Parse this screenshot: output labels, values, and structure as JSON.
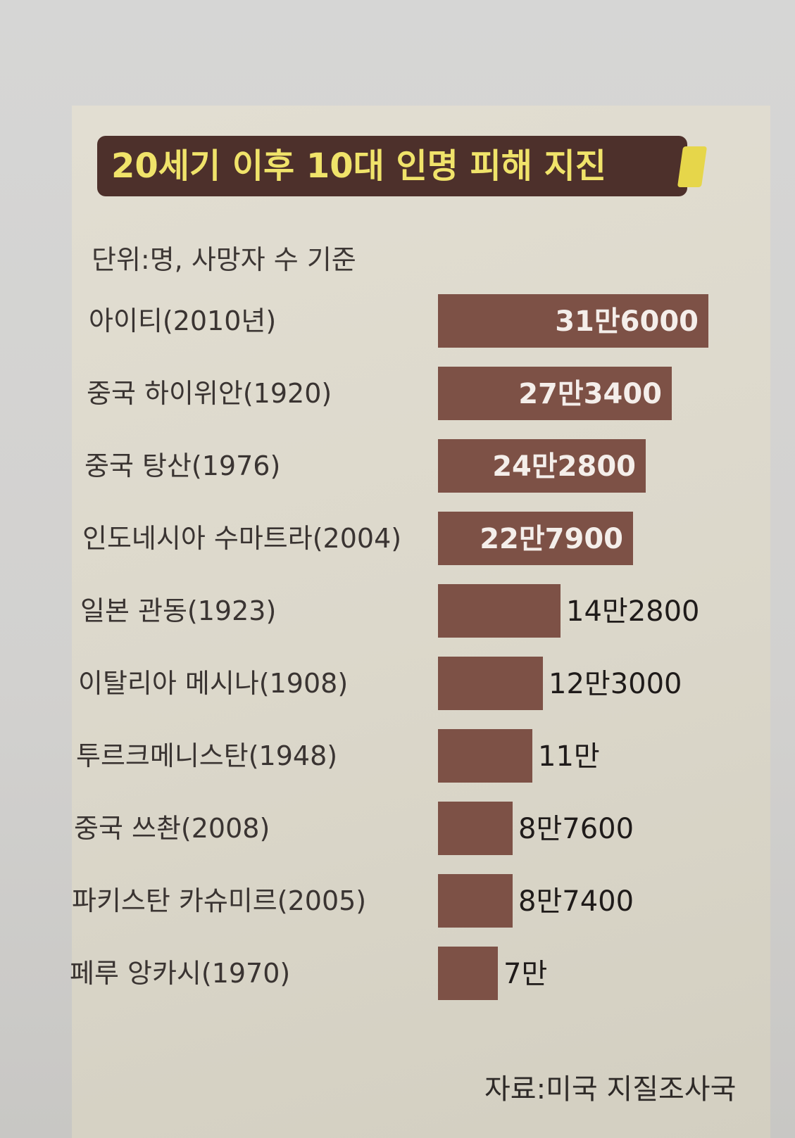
{
  "chart_data": {
    "type": "bar",
    "orientation": "horizontal",
    "title": "20세기 이후 10대 인명 피해 지진",
    "subtitle": "단위:명, 사망자 수 기준",
    "source": "자료:미국 지질조사국",
    "categories": [
      "아이티(2010년)",
      "중국 하이위안(1920)",
      "중국 탕산(1976)",
      "인도네시아 수마트라(2004)",
      "일본 관동(1923)",
      "이탈리아 메시나(1908)",
      "투르크메니스탄(1948)",
      "중국 쓰촨(2008)",
      "파키스탄 카슈미르(2005)",
      "페루 앙카시(1970)"
    ],
    "values": [
      316000,
      273400,
      242800,
      227900,
      142800,
      123000,
      110000,
      87600,
      87400,
      70000
    ],
    "value_labels": [
      "31만6000",
      "27만3400",
      "24만2800",
      "22만7900",
      "14만2800",
      "12만3000",
      "11만",
      "8만7600",
      "8만7400",
      "7만"
    ],
    "ylim": [
      0,
      316000
    ],
    "grid": false,
    "legend": "none",
    "colors": {
      "bar": "#7d5146",
      "title_bg": "#4d302b",
      "title_text": "#f0e36a",
      "accent": "#e6d64a"
    }
  }
}
